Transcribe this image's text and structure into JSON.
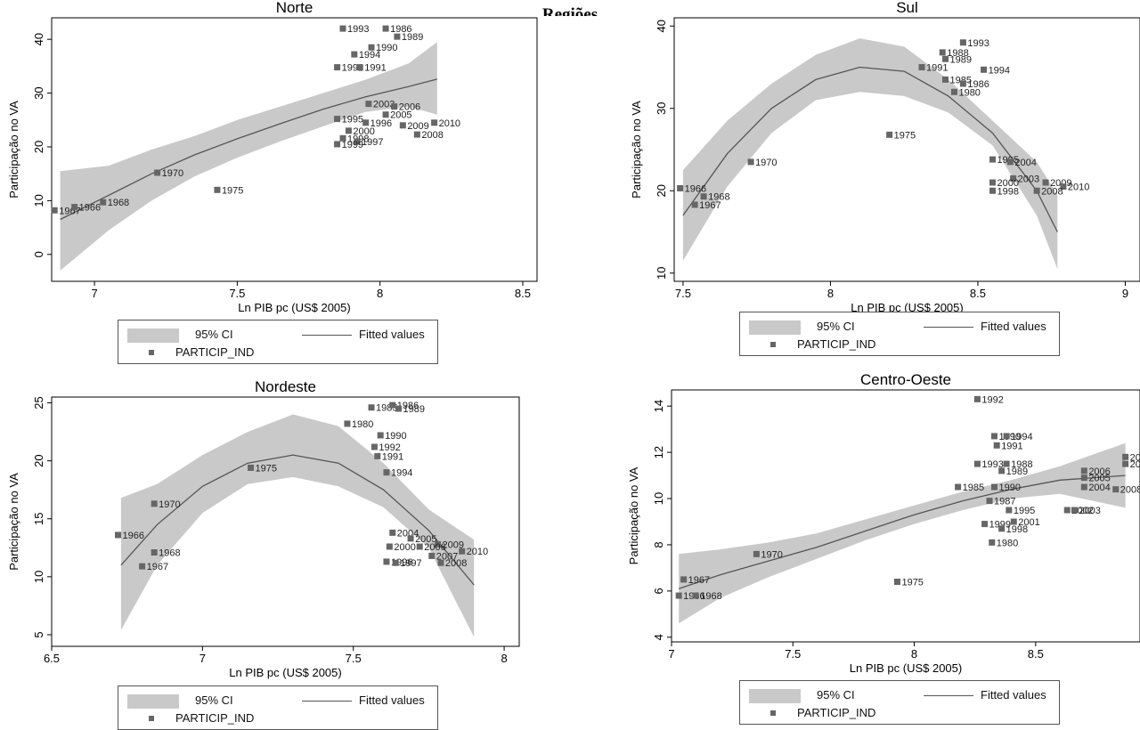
{
  "page_title": "Regiões",
  "legend": {
    "ci_label": "95% CI",
    "fit_label": "Fitted values",
    "points_label": "PARTICIP_IND"
  },
  "colors": {
    "ci_band": "#c9c9c9",
    "fit_line": "#555555",
    "points": "#666666",
    "axis": "#000000"
  },
  "chart_data": [
    {
      "type": "scatter",
      "title": "Norte",
      "xlabel": "Ln PIB pc (US$ 2005)",
      "ylabel": "Participação no VA",
      "xlim": [
        6.85,
        8.55
      ],
      "ylim": [
        -5,
        44
      ],
      "xticks": [
        7,
        7.5,
        8,
        8.5
      ],
      "xtick_labels": [
        "7",
        "7.5",
        "8",
        "8.5"
      ],
      "yticks": [
        0,
        10,
        20,
        30,
        40
      ],
      "ytick_labels": [
        "0",
        "10",
        "20",
        "30",
        "40"
      ],
      "fit": {
        "x": [
          6.88,
          7.05,
          7.2,
          7.35,
          7.5,
          7.65,
          7.8,
          7.95,
          8.1,
          8.2
        ],
        "y": [
          6.5,
          11,
          15,
          18.5,
          21.5,
          24.3,
          27,
          29.3,
          31.2,
          32.6
        ]
      },
      "ci": {
        "x": [
          6.88,
          7.05,
          7.2,
          7.35,
          7.5,
          7.65,
          7.8,
          7.95,
          8.1,
          8.2
        ],
        "lower": [
          -3,
          4.5,
          10,
          14.5,
          18,
          21,
          23.8,
          26.5,
          27.5,
          26
        ],
        "upper": [
          15.5,
          16.5,
          19.5,
          22,
          25,
          27.5,
          30,
          32.5,
          35.5,
          39.5
        ]
      },
      "points": [
        {
          "x": 6.86,
          "y": 8.2,
          "label": "1967"
        },
        {
          "x": 6.93,
          "y": 8.8,
          "label": "1966"
        },
        {
          "x": 7.03,
          "y": 9.7,
          "label": "1968"
        },
        {
          "x": 7.22,
          "y": 15.2,
          "label": "1970"
        },
        {
          "x": 7.43,
          "y": 12.0,
          "label": "1975"
        },
        {
          "x": 7.87,
          "y": 42.0,
          "label": "1993"
        },
        {
          "x": 8.02,
          "y": 42.0,
          "label": "1986"
        },
        {
          "x": 8.06,
          "y": 40.5,
          "label": "1989"
        },
        {
          "x": 7.97,
          "y": 38.5,
          "label": "1990"
        },
        {
          "x": 7.91,
          "y": 37.2,
          "label": "1994"
        },
        {
          "x": 7.85,
          "y": 34.8,
          "label": "1992"
        },
        {
          "x": 7.93,
          "y": 34.8,
          "label": "1991"
        },
        {
          "x": 7.96,
          "y": 28.0,
          "label": "2003"
        },
        {
          "x": 8.05,
          "y": 27.5,
          "label": "2006"
        },
        {
          "x": 8.02,
          "y": 26.0,
          "label": "2005"
        },
        {
          "x": 7.85,
          "y": 25.2,
          "label": "1995"
        },
        {
          "x": 7.95,
          "y": 24.5,
          "label": "1996"
        },
        {
          "x": 8.08,
          "y": 24.0,
          "label": "2009"
        },
        {
          "x": 8.19,
          "y": 24.5,
          "label": "2010"
        },
        {
          "x": 7.89,
          "y": 23.0,
          "label": "2000"
        },
        {
          "x": 8.13,
          "y": 22.3,
          "label": "2008"
        },
        {
          "x": 7.87,
          "y": 21.6,
          "label": "1998"
        },
        {
          "x": 7.92,
          "y": 21.0,
          "label": "1997"
        },
        {
          "x": 7.85,
          "y": 20.5,
          "label": "1999"
        }
      ]
    },
    {
      "type": "scatter",
      "title": "Sul",
      "xlabel": "Ln PIB pc (US$ 2005)",
      "ylabel": "Participação no VA",
      "xlim": [
        7.47,
        9.05
      ],
      "ylim": [
        9,
        41
      ],
      "xticks": [
        7.5,
        8,
        8.5,
        9
      ],
      "xtick_labels": [
        "7.5",
        "8",
        "8.5",
        "9"
      ],
      "yticks": [
        10,
        20,
        30,
        40
      ],
      "ytick_labels": [
        "10",
        "20",
        "30",
        "40"
      ],
      "fit": {
        "x": [
          7.5,
          7.65,
          7.8,
          7.95,
          8.1,
          8.25,
          8.4,
          8.55,
          8.7,
          8.77
        ],
        "y": [
          17,
          24.5,
          30,
          33.5,
          35,
          34.5,
          31.5,
          27,
          20,
          15
        ]
      },
      "ci": {
        "x": [
          7.5,
          7.65,
          7.8,
          7.95,
          8.1,
          8.25,
          8.4,
          8.55,
          8.7,
          8.77
        ],
        "lower": [
          11.5,
          20.5,
          27,
          31,
          32,
          31.5,
          29.5,
          25.5,
          17,
          10.5
        ],
        "upper": [
          22.5,
          28.5,
          33,
          36.5,
          38.5,
          37.5,
          33.5,
          28.5,
          23.5,
          19.5
        ]
      },
      "points": [
        {
          "x": 7.49,
          "y": 20.3,
          "label": "1966"
        },
        {
          "x": 7.54,
          "y": 18.3,
          "label": "1967"
        },
        {
          "x": 7.57,
          "y": 19.3,
          "label": "1968"
        },
        {
          "x": 7.73,
          "y": 23.5,
          "label": "1970"
        },
        {
          "x": 8.2,
          "y": 26.8,
          "label": "1975"
        },
        {
          "x": 8.45,
          "y": 38.0,
          "label": "1993"
        },
        {
          "x": 8.38,
          "y": 36.8,
          "label": "1988"
        },
        {
          "x": 8.39,
          "y": 36.0,
          "label": "1989"
        },
        {
          "x": 8.31,
          "y": 35.0,
          "label": "1991"
        },
        {
          "x": 8.52,
          "y": 34.7,
          "label": "1994"
        },
        {
          "x": 8.39,
          "y": 33.5,
          "label": "1985"
        },
        {
          "x": 8.45,
          "y": 33.0,
          "label": "1986"
        },
        {
          "x": 8.42,
          "y": 32.0,
          "label": "1980"
        },
        {
          "x": 8.55,
          "y": 23.8,
          "label": "1995"
        },
        {
          "x": 8.61,
          "y": 23.5,
          "label": "2004"
        },
        {
          "x": 8.62,
          "y": 21.5,
          "label": "2003"
        },
        {
          "x": 8.55,
          "y": 21.0,
          "label": "2000"
        },
        {
          "x": 8.73,
          "y": 21.0,
          "label": "2009"
        },
        {
          "x": 8.79,
          "y": 20.5,
          "label": "2010"
        },
        {
          "x": 8.7,
          "y": 20.0,
          "label": "2008"
        },
        {
          "x": 8.55,
          "y": 20.0,
          "label": "1998"
        }
      ]
    },
    {
      "type": "scatter",
      "title": "Nordeste",
      "xlabel": "Ln PIB pc (US$ 2005)",
      "ylabel": "Participação no VA",
      "xlim": [
        6.5,
        8.05
      ],
      "ylim": [
        4,
        25.5
      ],
      "xticks": [
        6.5,
        7,
        7.5,
        8
      ],
      "xtick_labels": [
        "6.5",
        "7",
        "7.5",
        "8"
      ],
      "yticks": [
        5,
        10,
        15,
        20,
        25
      ],
      "ytick_labels": [
        "5",
        "10",
        "15",
        "20",
        "25"
      ],
      "fit": {
        "x": [
          6.73,
          6.85,
          7.0,
          7.15,
          7.3,
          7.45,
          7.6,
          7.75,
          7.9
        ],
        "y": [
          11,
          14.5,
          17.8,
          19.8,
          20.5,
          19.8,
          17.5,
          14,
          9.3
        ]
      },
      "ci": {
        "x": [
          6.73,
          6.85,
          7.0,
          7.15,
          7.3,
          7.45,
          7.6,
          7.75,
          7.9
        ],
        "lower": [
          5.4,
          11,
          15.5,
          18,
          18.6,
          17.8,
          16,
          12.5,
          4.8
        ],
        "upper": [
          16.8,
          18,
          20.5,
          22.5,
          24,
          23,
          19.8,
          15.8,
          13.2
        ]
      },
      "points": [
        {
          "x": 6.72,
          "y": 13.6,
          "label": "1966"
        },
        {
          "x": 6.84,
          "y": 16.3,
          "label": "1970"
        },
        {
          "x": 6.84,
          "y": 12.1,
          "label": "1968"
        },
        {
          "x": 6.8,
          "y": 10.9,
          "label": "1967"
        },
        {
          "x": 7.16,
          "y": 19.4,
          "label": "1975"
        },
        {
          "x": 7.56,
          "y": 24.6,
          "label": "1985"
        },
        {
          "x": 7.63,
          "y": 24.8,
          "label": "1986"
        },
        {
          "x": 7.65,
          "y": 24.5,
          "label": "1989"
        },
        {
          "x": 7.48,
          "y": 23.2,
          "label": "1980"
        },
        {
          "x": 7.59,
          "y": 22.2,
          "label": "1990"
        },
        {
          "x": 7.57,
          "y": 21.2,
          "label": "1992"
        },
        {
          "x": 7.58,
          "y": 20.4,
          "label": "1991"
        },
        {
          "x": 7.61,
          "y": 19.0,
          "label": "1994"
        },
        {
          "x": 7.63,
          "y": 13.8,
          "label": "2004"
        },
        {
          "x": 7.69,
          "y": 13.3,
          "label": "2005"
        },
        {
          "x": 7.62,
          "y": 12.6,
          "label": "2000"
        },
        {
          "x": 7.78,
          "y": 12.8,
          "label": "2009"
        },
        {
          "x": 7.86,
          "y": 12.2,
          "label": "2010"
        },
        {
          "x": 7.72,
          "y": 12.6,
          "label": "2006"
        },
        {
          "x": 7.76,
          "y": 11.8,
          "label": "2007"
        },
        {
          "x": 7.79,
          "y": 11.2,
          "label": "2008"
        },
        {
          "x": 7.61,
          "y": 11.3,
          "label": "1996"
        },
        {
          "x": 7.64,
          "y": 11.2,
          "label": "1997"
        }
      ]
    },
    {
      "type": "scatter",
      "title": "Centro-Oeste",
      "xlabel": "Ln PIB pc (US$ 2005)",
      "ylabel": "Participação no VA",
      "xlim": [
        7.0,
        8.93
      ],
      "ylim": [
        3.8,
        14.7
      ],
      "xticks": [
        7,
        7.5,
        8,
        8.5,
        9
      ],
      "xtick_labels": [
        "7",
        "7.5",
        "8",
        "8.5",
        "9"
      ],
      "yticks": [
        4,
        6,
        8,
        10,
        12,
        14
      ],
      "ytick_labels": [
        "4",
        "6",
        "8",
        "10",
        "12",
        "14"
      ],
      "fit": {
        "x": [
          7.03,
          7.2,
          7.4,
          7.6,
          7.8,
          8.0,
          8.2,
          8.4,
          8.6,
          8.87
        ],
        "y": [
          6.1,
          6.7,
          7.3,
          7.9,
          8.6,
          9.3,
          9.9,
          10.4,
          10.8,
          11.0
        ]
      },
      "ci": {
        "x": [
          7.03,
          7.2,
          7.4,
          7.6,
          7.8,
          8.0,
          8.2,
          8.4,
          8.6,
          8.87
        ],
        "lower": [
          4.6,
          5.7,
          6.6,
          7.4,
          8.2,
          8.9,
          9.5,
          10.0,
          10.2,
          9.6
        ],
        "upper": [
          7.6,
          7.8,
          8.1,
          8.5,
          9.1,
          9.7,
          10.3,
          10.8,
          11.4,
          12.4
        ]
      },
      "points": [
        {
          "x": 7.03,
          "y": 5.8,
          "label": "1966"
        },
        {
          "x": 7.05,
          "y": 6.5,
          "label": "1967"
        },
        {
          "x": 7.1,
          "y": 5.8,
          "label": "1968"
        },
        {
          "x": 7.35,
          "y": 7.6,
          "label": "1970"
        },
        {
          "x": 7.93,
          "y": 6.4,
          "label": "1975"
        },
        {
          "x": 8.26,
          "y": 14.3,
          "label": "1992"
        },
        {
          "x": 8.33,
          "y": 12.7,
          "label": "1990"
        },
        {
          "x": 8.38,
          "y": 12.7,
          "label": "1994"
        },
        {
          "x": 8.34,
          "y": 12.3,
          "label": "1991"
        },
        {
          "x": 8.26,
          "y": 11.5,
          "label": "1993"
        },
        {
          "x": 8.38,
          "y": 11.5,
          "label": "1988"
        },
        {
          "x": 8.36,
          "y": 11.2,
          "label": "1989"
        },
        {
          "x": 8.18,
          "y": 10.5,
          "label": "1985"
        },
        {
          "x": 8.33,
          "y": 10.5,
          "label": "1990"
        },
        {
          "x": 8.31,
          "y": 9.9,
          "label": "1987"
        },
        {
          "x": 8.39,
          "y": 9.5,
          "label": "1995"
        },
        {
          "x": 8.29,
          "y": 8.9,
          "label": "1999"
        },
        {
          "x": 8.36,
          "y": 8.7,
          "label": "1998"
        },
        {
          "x": 8.41,
          "y": 9.0,
          "label": "2001"
        },
        {
          "x": 8.32,
          "y": 8.1,
          "label": "1980"
        },
        {
          "x": 8.63,
          "y": 9.5,
          "label": "2002"
        },
        {
          "x": 8.66,
          "y": 9.5,
          "label": "2003"
        },
        {
          "x": 8.7,
          "y": 11.2,
          "label": "2006"
        },
        {
          "x": 8.7,
          "y": 10.9,
          "label": "2005"
        },
        {
          "x": 8.7,
          "y": 10.5,
          "label": "2004"
        },
        {
          "x": 8.83,
          "y": 10.4,
          "label": "2008"
        },
        {
          "x": 8.87,
          "y": 11.8,
          "label": "2010"
        },
        {
          "x": 8.87,
          "y": 11.5,
          "label": "2009"
        }
      ]
    }
  ]
}
